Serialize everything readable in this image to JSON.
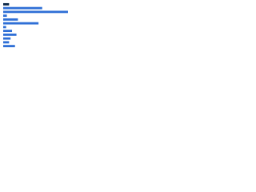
{
  "chart_data": {
    "type": "bar",
    "orientation": "horizontal",
    "categories": [
      null,
      null,
      null,
      null,
      null,
      null,
      null,
      null,
      null,
      null,
      null,
      null
    ],
    "values": [
      8,
      53,
      88,
      5,
      20,
      48,
      4,
      12,
      18,
      10,
      8,
      16
    ],
    "colors": [
      "#0b2746",
      "#2f6fd6",
      "#2f6fd6",
      "#2f6fd6",
      "#2f6fd6",
      "#2f6fd6",
      "#2f6fd6",
      "#2f6fd6",
      "#2f6fd6",
      "#2f6fd6",
      "#2f6fd6",
      "#2f6fd6"
    ],
    "xlim": [
      0,
      100
    ],
    "grid": false
  }
}
